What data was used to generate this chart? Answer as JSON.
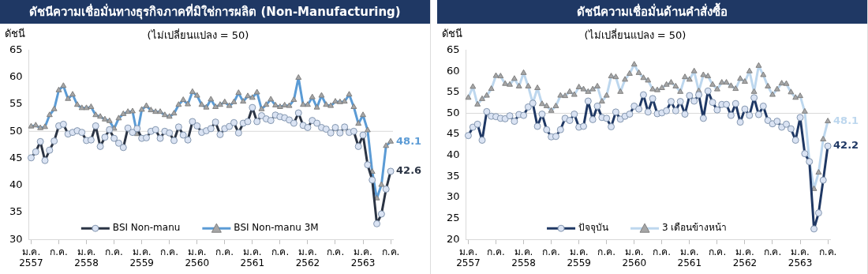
{
  "chart_data": [
    {
      "type": "line",
      "title": "ดัชนีความเชื่อมั่นทางธุรกิจภาคที่มิใช่การผลิต (Non-Manufacturing)",
      "subtitle": "(ไม่เปลี่ยนแปลง = 50)",
      "ylabel": "ดัชนี",
      "categories": [
        "ม.ค. 2557",
        null,
        null,
        null,
        null,
        null,
        "ก.ค.",
        null,
        null,
        null,
        null,
        null,
        "ม.ค. 2558",
        null,
        null,
        null,
        null,
        null,
        "ก.ค.",
        null,
        null,
        null,
        null,
        null,
        "ม.ค. 2559",
        null,
        null,
        null,
        null,
        null,
        "ก.ค.",
        null,
        null,
        null,
        null,
        null,
        "ม.ค. 2560",
        null,
        null,
        null,
        null,
        null,
        "ก.ค.",
        null,
        null,
        null,
        null,
        null,
        "ม.ค. 2561",
        null,
        null,
        null,
        null,
        null,
        "ก.ค.",
        null,
        null,
        null,
        null,
        null,
        "ม.ค. 2562",
        null,
        null,
        null,
        null,
        null,
        "ก.ค.",
        null,
        null,
        null,
        null,
        null,
        "ม.ค. 2563",
        null,
        null,
        null,
        null,
        null,
        "ก.ค."
      ],
      "series": [
        {
          "name": "BSI Non-manu",
          "color": "#2b3444",
          "marker": "circle",
          "values": [
            45.1,
            46.2,
            48.1,
            44.6,
            46.5,
            48.2,
            51.0,
            51.3,
            49.5,
            49.8,
            50.1,
            49.8,
            48.3,
            48.4,
            51.0,
            47.2,
            48.9,
            50.3,
            48.7,
            47.8,
            47.0,
            50.6,
            49.8,
            50.5,
            48.7,
            48.8,
            50.0,
            50.3,
            48.7,
            50.0,
            49.7,
            48.3,
            50.8,
            49.3,
            48.4,
            51.8,
            51.0,
            49.8,
            50.1,
            50.5,
            51.7,
            49.4,
            50.5,
            50.9,
            51.6,
            49.7,
            51.5,
            51.8,
            54.4,
            51.8,
            52.9,
            52.3,
            52.0,
            53.0,
            52.7,
            52.5,
            52.1,
            51.5,
            53.4,
            51.1,
            50.7,
            52.0,
            51.5,
            50.7,
            50.4,
            49.7,
            50.7,
            49.7,
            50.8,
            49.8,
            50.0,
            47.2,
            49.3,
            43.8,
            41.0,
            32.9,
            34.7,
            39.3,
            42.6
          ],
          "value_labels": [
            null,
            null,
            null,
            null,
            null,
            null,
            null,
            null,
            null,
            null,
            null,
            null,
            null,
            null,
            null,
            null,
            null,
            null,
            null,
            null,
            null,
            null,
            null,
            null,
            null,
            null,
            null,
            null,
            null,
            null,
            null,
            null,
            null,
            null,
            null,
            null,
            null,
            null,
            null,
            null,
            null,
            null,
            null,
            null,
            null,
            null,
            null,
            null,
            null,
            null,
            null,
            null,
            null,
            null,
            null,
            null,
            null,
            null,
            null,
            null,
            null,
            null,
            null,
            null,
            null,
            null,
            null,
            null,
            null,
            null,
            null,
            null,
            null,
            null,
            null,
            null,
            null,
            null,
            "42.6"
          ]
        },
        {
          "name": "BSI Non-manu 3M",
          "color": "#5b9bd5",
          "marker": "triangle",
          "values": [
            50.9,
            51.1,
            50.6,
            50.8,
            53.0,
            54.1,
            57.6,
            58.4,
            56.0,
            56.8,
            54.9,
            54.3,
            54.3,
            54.5,
            53.0,
            52.7,
            52.2,
            51.9,
            50.5,
            52.4,
            53.2,
            53.6,
            53.7,
            49.5,
            54.0,
            54.7,
            53.9,
            53.6,
            53.6,
            53.0,
            52.7,
            53.3,
            54.9,
            55.8,
            55.0,
            57.3,
            56.6,
            54.9,
            54.4,
            55.9,
            54.5,
            54.9,
            55.4,
            54.7,
            55.4,
            57.1,
            55.5,
            56.5,
            56.2,
            57.2,
            54.1,
            54.9,
            55.9,
            54.8,
            54.5,
            54.8,
            54.7,
            55.8,
            59.9,
            54.9,
            54.9,
            56.3,
            54.4,
            56.6,
            54.9,
            54.7,
            55.5,
            55.4,
            55.5,
            56.8,
            54.5,
            51.4,
            53.0,
            50.2,
            42.5,
            37.6,
            40.1,
            47.3,
            48.1
          ],
          "value_labels": [
            null,
            null,
            null,
            null,
            null,
            null,
            null,
            null,
            null,
            null,
            null,
            null,
            null,
            null,
            null,
            null,
            null,
            null,
            null,
            null,
            null,
            null,
            null,
            null,
            null,
            null,
            null,
            null,
            null,
            null,
            null,
            null,
            null,
            null,
            null,
            null,
            null,
            null,
            null,
            null,
            null,
            null,
            null,
            null,
            null,
            null,
            null,
            null,
            null,
            null,
            null,
            null,
            null,
            null,
            null,
            null,
            null,
            null,
            null,
            null,
            null,
            null,
            null,
            null,
            null,
            null,
            null,
            null,
            null,
            null,
            null,
            null,
            null,
            null,
            null,
            null,
            null,
            null,
            "48.1"
          ]
        }
      ],
      "ylim": [
        30,
        65
      ],
      "yticks": [
        30,
        35,
        40,
        45,
        50,
        55,
        60,
        65
      ],
      "ref_lines": [
        {
          "axis": "y",
          "value": 50,
          "color": "#d9d9d9"
        }
      ],
      "legend": "bottom",
      "grid": false
    },
    {
      "type": "line",
      "title": "ดัชนีความเชื่อมั่นด้านคำสั่งซื้อ",
      "subtitle": "(ไม่เปลี่ยนแปลง = 50)",
      "ylabel": "ดัชนี",
      "categories": [
        "ม.ค. 2557",
        null,
        null,
        null,
        null,
        null,
        "ก.ค.",
        null,
        null,
        null,
        null,
        null,
        "ม.ค. 2558",
        null,
        null,
        null,
        null,
        null,
        "ก.ค.",
        null,
        null,
        null,
        null,
        null,
        "ม.ค. 2559",
        null,
        null,
        null,
        null,
        null,
        "ก.ค.",
        null,
        null,
        null,
        null,
        null,
        "ม.ค. 2560",
        null,
        null,
        null,
        null,
        null,
        "ก.ค.",
        null,
        null,
        null,
        null,
        null,
        "ม.ค. 2561",
        null,
        null,
        null,
        null,
        null,
        "ก.ค.",
        null,
        null,
        null,
        null,
        null,
        "ม.ค. 2562",
        null,
        null,
        null,
        null,
        null,
        "ก.ค.",
        null,
        null,
        null,
        null,
        null,
        "ม.ค. 2563",
        null,
        null,
        null,
        null,
        null,
        "ก.ค."
      ],
      "series": [
        {
          "name": "ปัจจุบัน",
          "color": "#1f3864",
          "marker": "circle",
          "values": [
            44.7,
            46.7,
            47.4,
            43.6,
            50.4,
            49.3,
            49.2,
            48.8,
            48.7,
            49.4,
            48.1,
            49.7,
            49.5,
            51.5,
            52.4,
            46.9,
            49.8,
            46.1,
            44.4,
            44.5,
            46.1,
            48.8,
            48.3,
            49.8,
            46.7,
            46.9,
            52.9,
            48.5,
            51.7,
            49.0,
            48.8,
            46.8,
            50.3,
            48.6,
            49.3,
            49.8,
            51.7,
            51.0,
            54.4,
            50.3,
            53.5,
            49.9,
            50.1,
            50.6,
            52.8,
            50.6,
            52.8,
            49.8,
            54.2,
            52.9,
            54.4,
            48.8,
            55.3,
            52.6,
            50.8,
            52.1,
            52.1,
            49.5,
            52.3,
            47.9,
            51.0,
            49.5,
            53.7,
            49.7,
            51.7,
            48.3,
            47.5,
            48.1,
            46.7,
            47.4,
            46.3,
            43.6,
            49.0,
            40.4,
            38.5,
            22.5,
            26.3,
            34.1,
            42.2
          ],
          "value_labels": [
            null,
            null,
            null,
            null,
            null,
            null,
            null,
            null,
            null,
            null,
            null,
            null,
            null,
            null,
            null,
            null,
            null,
            null,
            null,
            null,
            null,
            null,
            null,
            null,
            null,
            null,
            null,
            null,
            null,
            null,
            null,
            null,
            null,
            null,
            null,
            null,
            null,
            null,
            null,
            null,
            null,
            null,
            null,
            null,
            null,
            null,
            null,
            null,
            null,
            null,
            null,
            null,
            null,
            null,
            null,
            null,
            null,
            null,
            null,
            null,
            null,
            null,
            null,
            null,
            null,
            null,
            null,
            null,
            null,
            null,
            null,
            null,
            null,
            null,
            null,
            null,
            null,
            null,
            "42.2"
          ]
        },
        {
          "name": "3 เดือนข้างหน้า",
          "color": "#bdd7ee",
          "marker": "triangle",
          "values": [
            53.7,
            56.3,
            52.1,
            53.4,
            54.2,
            55.8,
            58.9,
            58.8,
            57.0,
            56.8,
            58.2,
            56.4,
            59.6,
            56.4,
            52.4,
            56.0,
            52.2,
            51.7,
            50.6,
            51.7,
            54.2,
            54.1,
            55.1,
            54.4,
            56.2,
            55.7,
            55.1,
            55.7,
            56.4,
            52.8,
            54.2,
            58.8,
            58.6,
            55.1,
            58.0,
            59.4,
            61.6,
            59.6,
            58.4,
            57.8,
            55.7,
            55.5,
            56.0,
            56.8,
            57.3,
            56.4,
            55.1,
            58.6,
            58.0,
            60.0,
            55.3,
            59.1,
            58.8,
            56.8,
            55.7,
            57.3,
            57.3,
            56.5,
            55.8,
            58.2,
            57.5,
            60.0,
            55.1,
            61.3,
            59.1,
            56.4,
            54.4,
            55.7,
            57.1,
            57.0,
            55.0,
            53.7,
            54.1,
            50.4,
            38.6,
            32.0,
            35.9,
            43.8,
            48.1
          ],
          "value_labels": [
            null,
            null,
            null,
            null,
            null,
            null,
            null,
            null,
            null,
            null,
            null,
            null,
            null,
            null,
            null,
            null,
            null,
            null,
            null,
            null,
            null,
            null,
            null,
            null,
            null,
            null,
            null,
            null,
            null,
            null,
            null,
            null,
            null,
            null,
            null,
            null,
            null,
            null,
            null,
            null,
            null,
            null,
            null,
            null,
            null,
            null,
            null,
            null,
            null,
            null,
            null,
            null,
            null,
            null,
            null,
            null,
            null,
            null,
            null,
            null,
            null,
            null,
            null,
            null,
            null,
            null,
            null,
            null,
            null,
            null,
            null,
            null,
            null,
            null,
            null,
            null,
            null,
            null,
            "48.1"
          ]
        }
      ],
      "ylim": [
        20,
        65
      ],
      "yticks": [
        20,
        25,
        30,
        35,
        40,
        45,
        50,
        55,
        60,
        65
      ],
      "ref_lines": [
        {
          "axis": "y",
          "value": 50,
          "color": "#d9d9d9"
        }
      ],
      "legend": "bottom",
      "grid": false
    }
  ]
}
